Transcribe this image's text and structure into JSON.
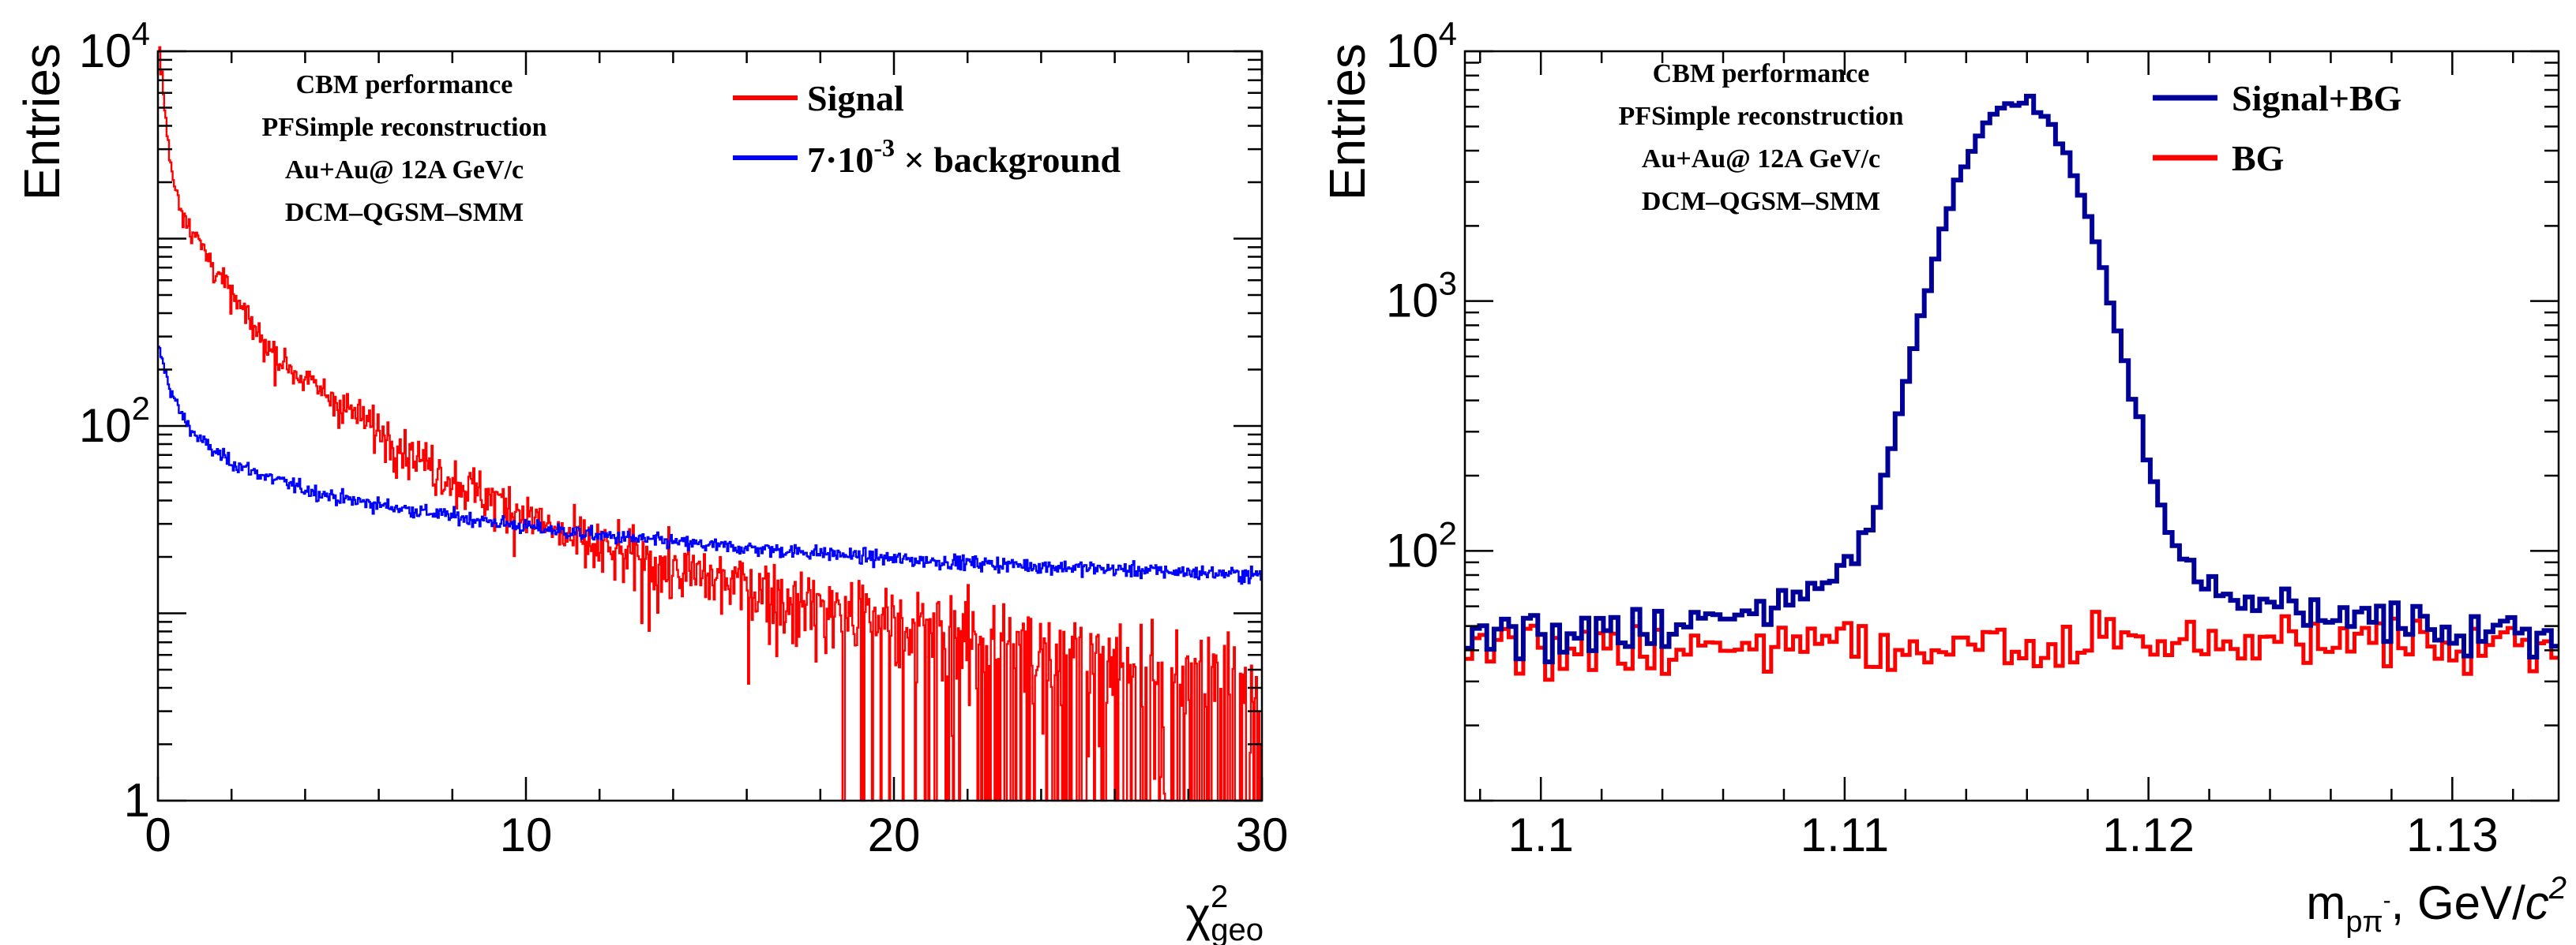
{
  "chart_data": [
    {
      "type": "line",
      "title": "",
      "xlabel": "χ²geo",
      "xlabel_main": "χ",
      "xlabel_sup": "2",
      "xlabel_sub": "geo",
      "ylabel": "Entries",
      "xlim": [
        0,
        30
      ],
      "ylim": [
        1,
        10000
      ],
      "y_scale": "log",
      "x_ticks": [
        0,
        10,
        20,
        30
      ],
      "x_tick_labels": [
        "0",
        "10",
        "20",
        "30"
      ],
      "y_ticks": [
        1,
        100,
        10000
      ],
      "y_tick_labels": [
        {
          "base": "1",
          "exp": ""
        },
        {
          "base": "10",
          "exp": "2"
        },
        {
          "base": "10",
          "exp": "4"
        }
      ],
      "annotation": [
        "CBM performance",
        "PFSimple reconstruction",
        "Au+Au@ 12A GeV/c",
        "DCM–QGSM–SMM"
      ],
      "legend_position": "top-right",
      "legend": [
        {
          "label": "Signal",
          "color": "#ff0000"
        },
        {
          "label_prefix": "7·10",
          "label_sup": "-3",
          "label_suffix": " × background",
          "color": "#0000ff"
        }
      ],
      "series": [
        {
          "name": "Signal",
          "color": "#ff0000",
          "x": [
            0.05,
            0.3,
            0.6,
            1.0,
            1.5,
            2,
            2.5,
            3,
            4,
            5,
            6,
            7,
            8,
            9,
            10,
            11,
            12,
            14,
            16,
            18,
            20,
            22,
            25,
            28,
            30
          ],
          "y": [
            10000,
            2800,
            1500,
            1050,
            720,
            500,
            360,
            260,
            175,
            130,
            95,
            70,
            52,
            42,
            34,
            26,
            22,
            17,
            14,
            11,
            9,
            7.5,
            6,
            5,
            4.5
          ]
        },
        {
          "name": "7·10^-3 × background",
          "color": "#0000ff",
          "x": [
            0.05,
            0.3,
            0.6,
            1.0,
            1.5,
            2,
            3,
            4,
            5,
            6,
            8,
            10,
            12,
            15,
            18,
            20,
            25,
            30
          ],
          "y": [
            250,
            165,
            118,
            90,
            74,
            64,
            53,
            46,
            41,
            38,
            33,
            29,
            26,
            23,
            21,
            19.5,
            17.5,
            16
          ]
        }
      ]
    },
    {
      "type": "line",
      "title": "",
      "xlabel": "mpπ-, GeV/c²",
      "xlabel_main": "m",
      "xlabel_sub": "pπ",
      "xlabel_subsup": "-",
      "xlabel_rest": ", GeV/",
      "xlabel_c": "c",
      "xlabel_csup": "2",
      "ylabel": "Entries",
      "xlim": [
        1.0975,
        1.1335
      ],
      "ylim": [
        10,
        10000
      ],
      "y_scale": "log",
      "x_ticks": [
        1.1,
        1.11,
        1.12,
        1.13
      ],
      "x_tick_labels": [
        "1.1",
        "1.11",
        "1.12",
        "1.13"
      ],
      "y_ticks": [
        100,
        1000,
        10000
      ],
      "y_tick_labels": [
        {
          "base": "10",
          "exp": "2"
        },
        {
          "base": "10",
          "exp": "3"
        },
        {
          "base": "10",
          "exp": "4"
        }
      ],
      "annotation": [
        "CBM performance",
        "PFSimple reconstruction",
        "Au+Au@ 12A GeV/c",
        "DCM–QGSM–SMM"
      ],
      "legend_position": "top-right",
      "legend": [
        {
          "label": "Signal+BG",
          "color": "#000099"
        },
        {
          "label": "BG",
          "color": "#ff0000"
        }
      ],
      "peak": {
        "mean": 1.1157,
        "sigma": 0.00155,
        "amplitude": 6200
      },
      "background_level": 42,
      "series": [
        {
          "name": "Signal+BG",
          "color": "#000099",
          "description": "background plus Gaussian peak near 1.1157 reaching ~6200 entries"
        },
        {
          "name": "BG",
          "color": "#ff0000",
          "description": "flat background around 40 entries per bin"
        }
      ]
    }
  ]
}
